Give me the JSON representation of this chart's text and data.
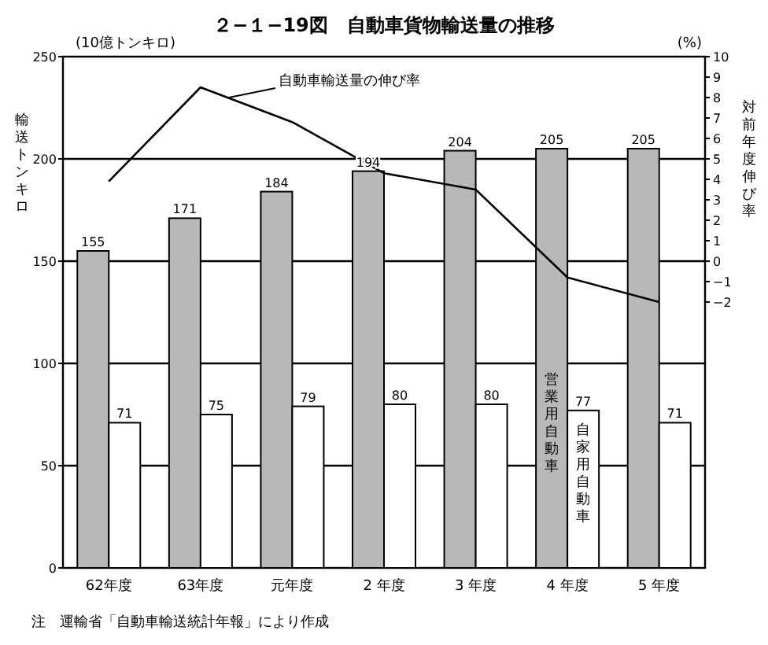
{
  "chart_data": {
    "type": "bar",
    "title": "２−１−19図　自動車貨物輸送量の推移",
    "ylabel": "輸送トンキロ",
    "y2label": "対前年度伸び率",
    "annotations": [
      "(10億トンキロ)",
      "(%)",
      "注　運輸省「自動車輸送統計年報」により作成"
    ],
    "categories": [
      "62年度",
      "63年度",
      "元年度",
      "2 年度",
      "3 年度",
      "4 年度",
      "5 年度"
    ],
    "series": [
      {
        "name": "営業用自動車",
        "color": "#b8b8b8",
        "values": [
          155,
          171,
          184,
          194,
          204,
          205,
          205
        ],
        "value_labels": [
          "155",
          "171",
          "184",
          "194",
          "204",
          "205",
          "205"
        ]
      },
      {
        "name": "自家用自動車",
        "color": "#ffffff",
        "values": [
          71,
          75,
          79,
          80,
          80,
          77,
          71
        ],
        "value_labels": [
          "71",
          "75",
          "79",
          "80",
          "80",
          "77",
          "71"
        ]
      },
      {
        "name": "自動車輸送量の伸び率",
        "type": "line",
        "axis": "y2",
        "color": "#000000",
        "values": [
          3.9,
          8.5,
          6.8,
          4.3,
          3.5,
          -0.8,
          -2.0
        ]
      }
    ],
    "grid": "y",
    "legend": false,
    "marker": "none",
    "line_style": "solid",
    "ylim": [
      0,
      250
    ],
    "yticks": [
      0,
      50,
      100,
      150,
      200,
      250
    ],
    "y2lim": [
      -15,
      10
    ],
    "y2ticks": [
      -2,
      -1,
      0,
      1,
      2,
      3,
      4,
      5,
      6,
      7,
      8,
      9,
      10
    ]
  }
}
